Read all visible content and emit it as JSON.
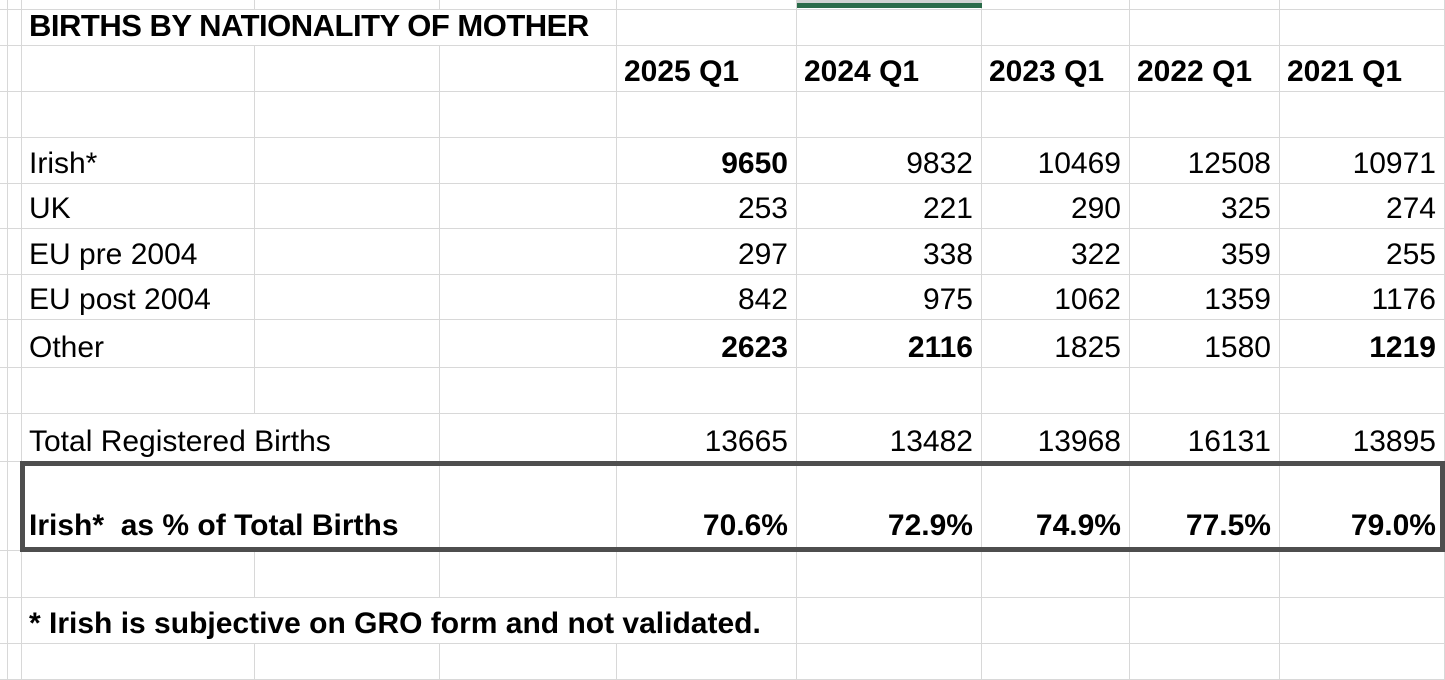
{
  "sheet": {
    "title": "BIRTHS BY NATIONALITY OF MOTHER",
    "columns": [
      "2025 Q1",
      "2024 Q1",
      "2023 Q1",
      "2022 Q1",
      "2021 Q1"
    ],
    "rows": [
      {
        "label": "Irish*",
        "values": [
          "9650",
          "9832",
          "10469",
          "12508",
          "10971"
        ],
        "bold": [
          true,
          false,
          false,
          false,
          false
        ]
      },
      {
        "label": "UK",
        "values": [
          "253",
          "221",
          "290",
          "325",
          "274"
        ],
        "bold": [
          false,
          false,
          false,
          false,
          false
        ]
      },
      {
        "label": "EU pre 2004",
        "values": [
          "297",
          "338",
          "322",
          "359",
          "255"
        ],
        "bold": [
          false,
          false,
          false,
          false,
          false
        ]
      },
      {
        "label": "EU post 2004",
        "values": [
          "842",
          "975",
          "1062",
          "1359",
          "1176"
        ],
        "bold": [
          false,
          false,
          false,
          false,
          false
        ]
      },
      {
        "label": "Other",
        "values": [
          "2623",
          "2116",
          "1825",
          "1580",
          "1219"
        ],
        "bold": [
          true,
          true,
          false,
          false,
          true
        ]
      }
    ],
    "total_row": {
      "label": "Total Registered Births",
      "values": [
        "13665",
        "13482",
        "13968",
        "16131",
        "13895"
      ]
    },
    "percent_row": {
      "label": "Irish*  as % of Total Births",
      "values": [
        "70.6%",
        "72.9%",
        "74.9%",
        "77.5%",
        "79.0%"
      ]
    },
    "footnote": "* Irish is subjective on GRO form and not validated.",
    "colors": {
      "gridline": "#d8d8d8",
      "highlight_box_border": "#4e4e4e",
      "selected_column_green": "#2a6b49",
      "selected_column_gray": "#d0d2d1",
      "background": "#ffffff",
      "text": "#000000"
    }
  }
}
